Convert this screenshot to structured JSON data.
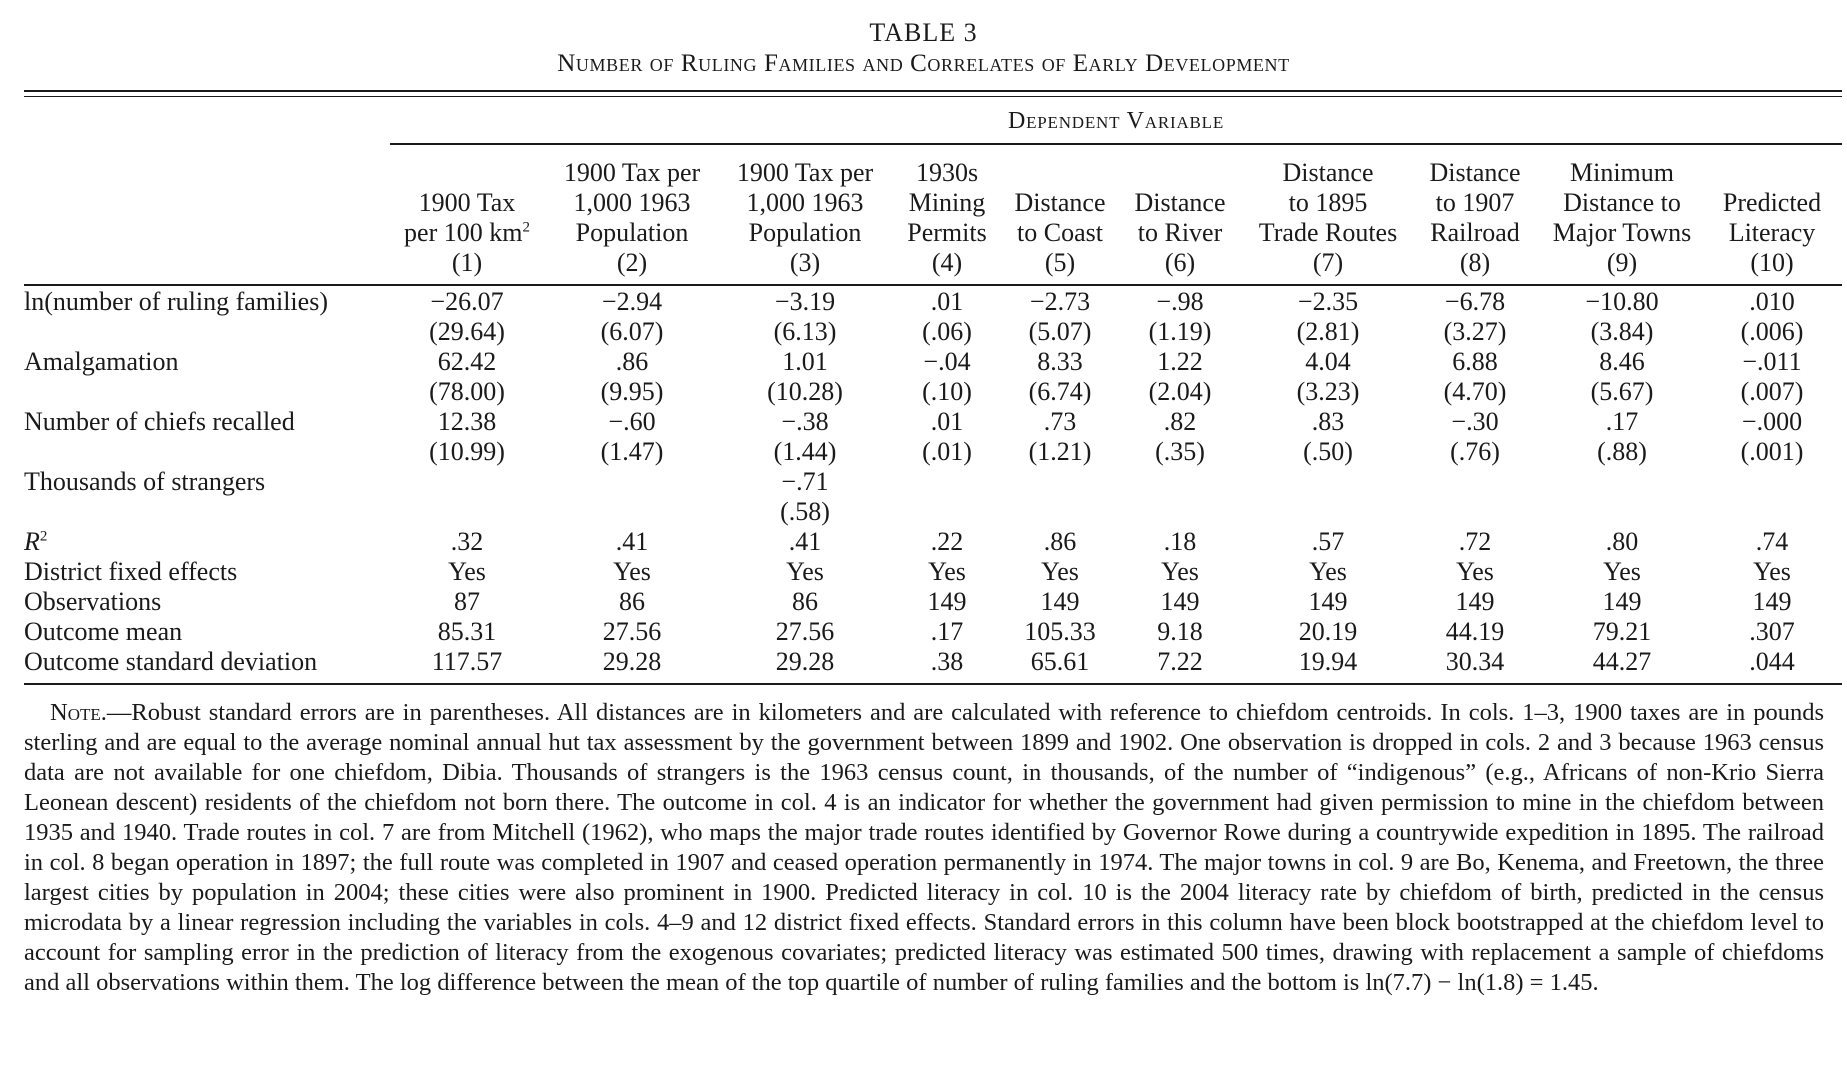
{
  "table_number": "TABLE 3",
  "title": "Number of Ruling Families and Correlates of Early Development",
  "dependent_variable_header": "Dependent Variable",
  "columns": [
    {
      "lines": [
        "",
        "1900 Tax",
        "per 100 km"
      ],
      "sup": "2",
      "num": "(1)"
    },
    {
      "lines": [
        "1900 Tax per",
        "1,000 1963",
        "Population"
      ],
      "num": "(2)"
    },
    {
      "lines": [
        "1900 Tax per",
        "1,000 1963",
        "Population"
      ],
      "num": "(3)"
    },
    {
      "lines": [
        "1930s",
        "Mining",
        "Permits"
      ],
      "num": "(4)"
    },
    {
      "lines": [
        "",
        "Distance",
        "to Coast"
      ],
      "num": "(5)"
    },
    {
      "lines": [
        "",
        "Distance",
        "to River"
      ],
      "num": "(6)"
    },
    {
      "lines": [
        "Distance",
        "to 1895",
        "Trade Routes"
      ],
      "num": "(7)"
    },
    {
      "lines": [
        "Distance",
        "to 1907",
        "Railroad"
      ],
      "num": "(8)"
    },
    {
      "lines": [
        "Minimum",
        "Distance to",
        "Major Towns"
      ],
      "num": "(9)"
    },
    {
      "lines": [
        "",
        "Predicted",
        "Literacy"
      ],
      "num": "(10)"
    }
  ],
  "rows": [
    {
      "label": "ln(number of ruling families)",
      "values": [
        "−26.07",
        "−2.94",
        "−3.19",
        ".01",
        "−2.73",
        "−.98",
        "−2.35",
        "−6.78",
        "−10.80",
        ".010"
      ]
    },
    {
      "label": "",
      "values": [
        "(29.64)",
        "(6.07)",
        "(6.13)",
        "(.06)",
        "(5.07)",
        "(1.19)",
        "(2.81)",
        "(3.27)",
        "(3.84)",
        "(.006)"
      ]
    },
    {
      "label": "Amalgamation",
      "values": [
        "62.42",
        ".86",
        "1.01",
        "−.04",
        "8.33",
        "1.22",
        "4.04",
        "6.88",
        "8.46",
        "−.011"
      ]
    },
    {
      "label": "",
      "values": [
        "(78.00)",
        "(9.95)",
        "(10.28)",
        "(.10)",
        "(6.74)",
        "(2.04)",
        "(3.23)",
        "(4.70)",
        "(5.67)",
        "(.007)"
      ]
    },
    {
      "label": "Number of chiefs recalled",
      "values": [
        "12.38",
        "−.60",
        "−.38",
        ".01",
        ".73",
        ".82",
        ".83",
        "−.30",
        ".17",
        "−.000"
      ]
    },
    {
      "label": "",
      "values": [
        "(10.99)",
        "(1.47)",
        "(1.44)",
        "(.01)",
        "(1.21)",
        "(.35)",
        "(.50)",
        "(.76)",
        "(.88)",
        "(.001)"
      ]
    },
    {
      "label": "Thousands of strangers",
      "values": [
        "",
        "",
        "−.71",
        "",
        "",
        "",
        "",
        "",
        "",
        ""
      ]
    },
    {
      "label": "",
      "values": [
        "",
        "",
        "(.58)",
        "",
        "",
        "",
        "",
        "",
        "",
        ""
      ]
    }
  ],
  "stats_rows": [
    {
      "label": "R",
      "label_sup": "2",
      "values": [
        ".32",
        ".41",
        ".41",
        ".22",
        ".86",
        ".18",
        ".57",
        ".72",
        ".80",
        ".74"
      ]
    },
    {
      "label": "District fixed effects",
      "values": [
        "Yes",
        "Yes",
        "Yes",
        "Yes",
        "Yes",
        "Yes",
        "Yes",
        "Yes",
        "Yes",
        "Yes"
      ]
    },
    {
      "label": "Observations",
      "values": [
        "87",
        "86",
        "86",
        "149",
        "149",
        "149",
        "149",
        "149",
        "149",
        "149"
      ]
    },
    {
      "label": "Outcome mean",
      "values": [
        "85.31",
        "27.56",
        "27.56",
        ".17",
        "105.33",
        "9.18",
        "20.19",
        "44.19",
        "79.21",
        ".307"
      ]
    },
    {
      "label": "Outcome standard deviation",
      "values": [
        "117.57",
        "29.28",
        "29.28",
        ".38",
        "65.61",
        "7.22",
        "19.94",
        "30.34",
        "44.27",
        ".044"
      ]
    }
  ],
  "note": {
    "heading": "Note.",
    "text": "—Robust standard errors are in parentheses. All distances are in kilometers and are calculated with reference to chiefdom centroids. In cols. 1–3, 1900 taxes are in pounds sterling and are equal to the average nominal annual hut tax assessment by the government between 1899 and 1902. One observation is dropped in cols. 2 and 3 because 1963 census data are not available for one chiefdom, Dibia. Thousands of strangers is the 1963 census count, in thousands, of the number of “indigenous” (e.g., Africans of non-Krio Sierra Leonean descent) residents of the chiefdom not born there. The outcome in col. 4 is an indicator for whether the government had given permission to mine in the chiefdom between 1935 and 1940. Trade routes in col. 7 are from Mitchell (1962), who maps the major trade routes identified by Governor Rowe during a countrywide expedition in 1895. The railroad in col. 8 began operation in 1897; the full route was completed in 1907 and ceased operation permanently in 1974. The major towns in col. 9 are Bo, Kenema, and Freetown, the three largest cities by population in 2004; these cities were also prominent in 1900. Predicted literacy in col. 10 is the 2004 literacy rate by chiefdom of birth, predicted in the census microdata by a linear regression including the variables in cols. 4–9 and 12 district fixed effects. Standard errors in this column have been block bootstrapped at the chiefdom level to account for sampling error in the prediction of literacy from the exogenous covariates; predicted literacy was estimated 500 times, drawing with replacement a sample of chiefdoms and all observations within them. The log difference between the mean of the top quartile of number of ruling families and the bottom is ln(7.7) − ln(1.8) = 1.45."
  }
}
